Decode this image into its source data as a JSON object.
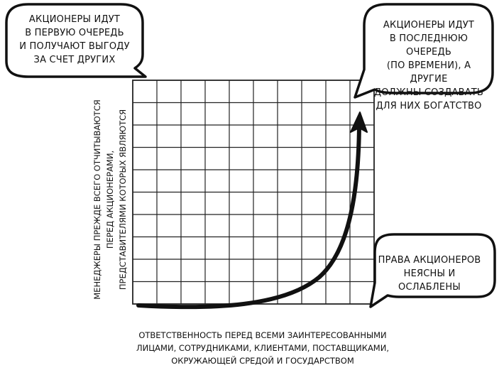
{
  "bubbles": {
    "top_left": {
      "lines": [
        "Акционеры идут",
        "в первую очередь",
        "и получают выгоду",
        "за счет других"
      ]
    },
    "top_right": {
      "lines": [
        "Акционеры идут",
        "в последнюю очередь",
        "(по времени), а другие",
        "должны создавать",
        "для них богатство"
      ]
    },
    "bottom_right": {
      "lines": [
        "Права акционеров",
        "неясны и ослаблены"
      ]
    }
  },
  "axes": {
    "x_label_lines": [
      "Ответственность перед всеми заинтересованными",
      "лицами, сотрудниками, клиентами, поставщиками,",
      "окружающей средой и государством"
    ],
    "y_label_lines": [
      "Менеджеры прежде всего отчитываются",
      "перед акционерами,",
      "представителями которых являются"
    ]
  },
  "colors": {
    "ink": "#111111",
    "background": "#ffffff",
    "grid": "#222222"
  }
}
